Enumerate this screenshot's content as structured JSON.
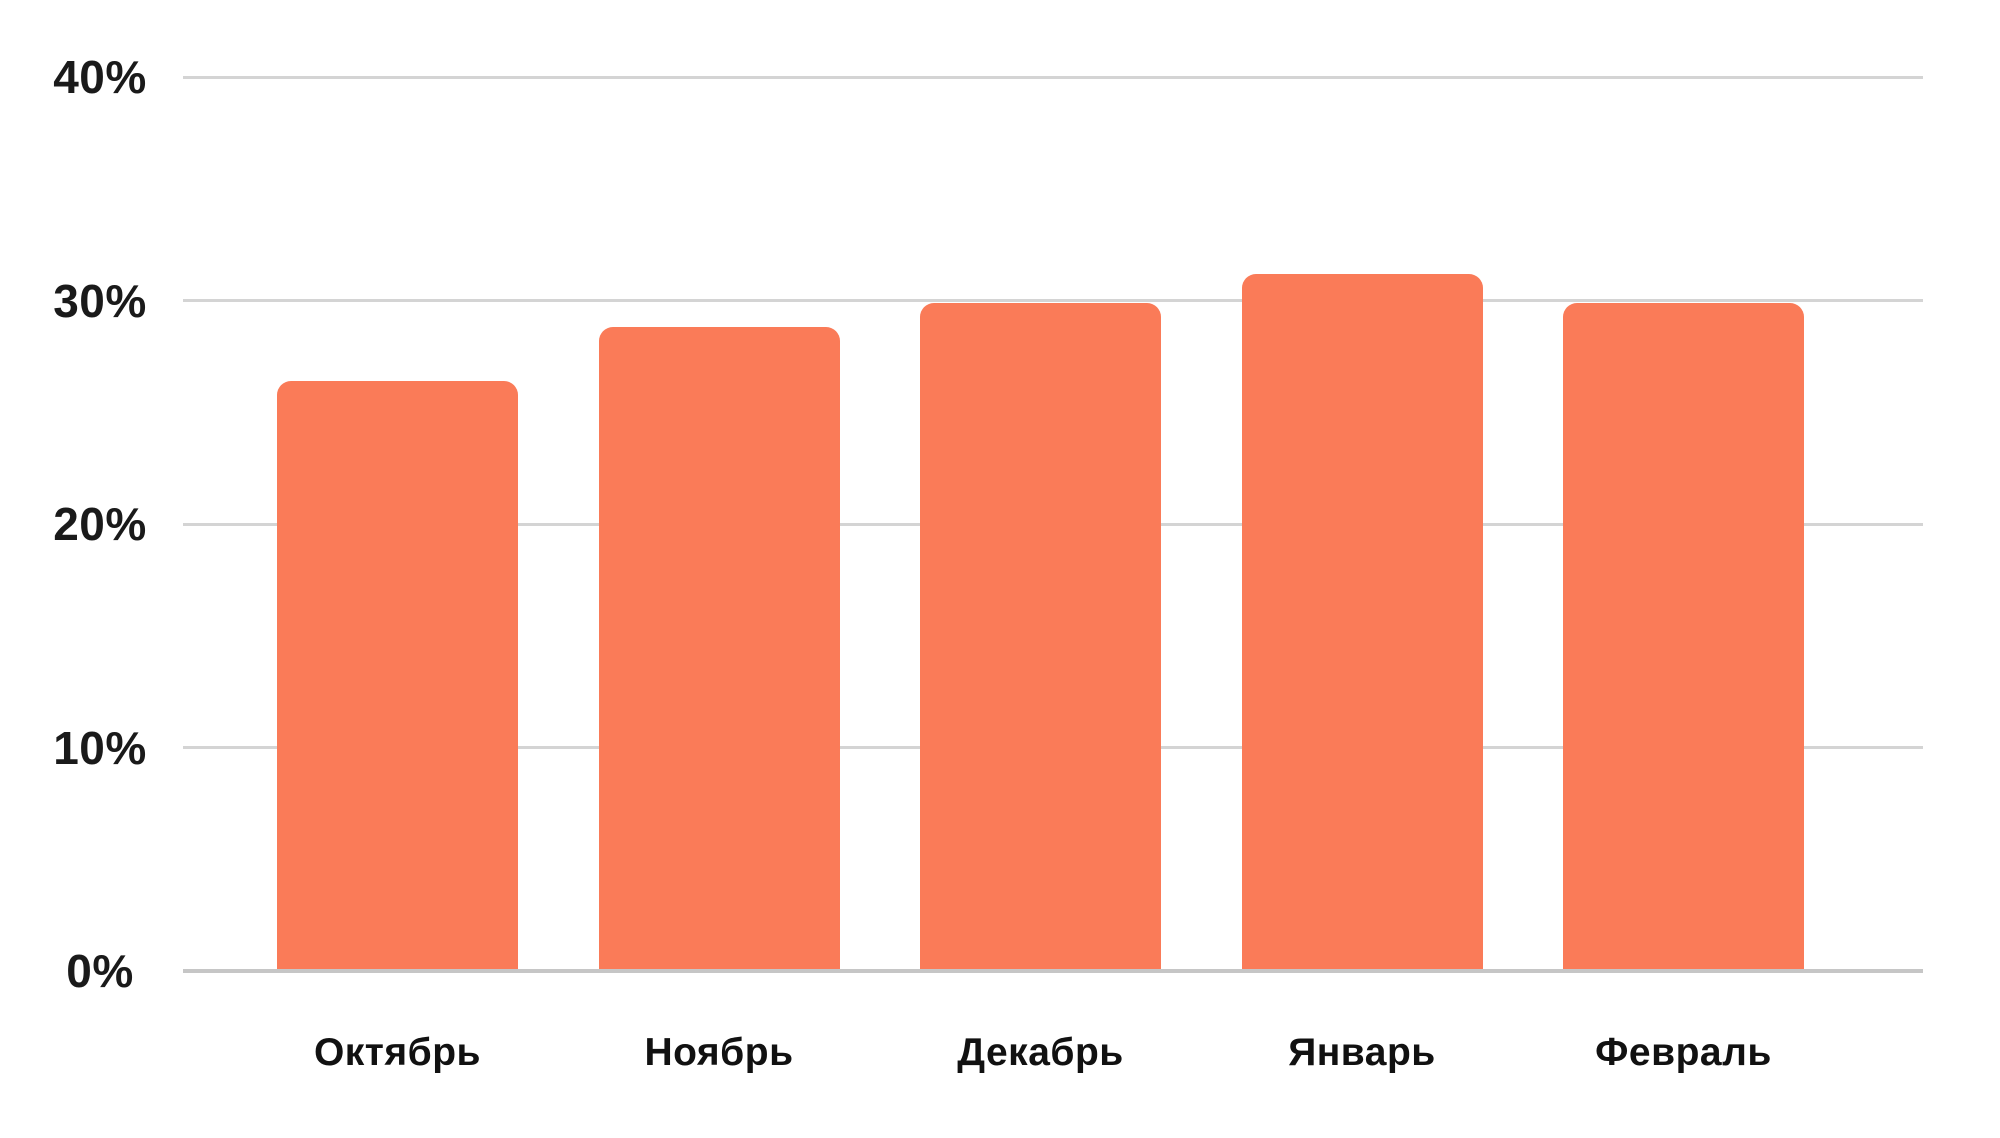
{
  "chart_data": {
    "type": "bar",
    "title": "",
    "xlabel": "",
    "ylabel": "",
    "categories": [
      "Октябрь",
      "Ноябрь",
      "Декабрь",
      "Январь",
      "Февраль"
    ],
    "values": [
      26.4,
      28.8,
      29.9,
      31.2,
      29.9
    ],
    "unit": "%",
    "y_ticks": [
      0,
      10,
      20,
      30,
      40
    ],
    "y_tick_labels": [
      "0%",
      "10%",
      "20%",
      "30%",
      "40%"
    ],
    "ylim": [
      0,
      40
    ],
    "grid": "horizontal",
    "legend": "none",
    "colors": {
      "bar": "#FA7B58",
      "gridline": "#D4D4D4",
      "baseline": "#C6C6C6",
      "tick_text": "#1A1A1A",
      "category_text": "#111111",
      "background": "#FFFFFF"
    }
  }
}
